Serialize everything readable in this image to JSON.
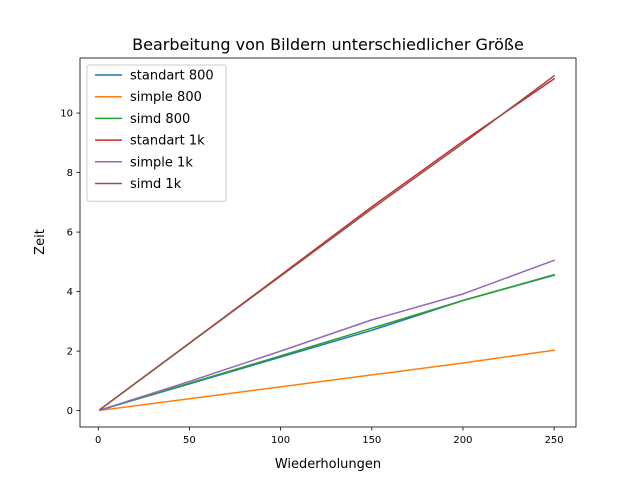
{
  "chart_data": {
    "type": "line",
    "title": "Bearbeitung von Bildern unterschiedlicher Größe",
    "xlabel": "Wiederholungen",
    "ylabel": "Zeit",
    "xlim": [
      -10,
      262
    ],
    "ylim": [
      -0.55,
      11.85
    ],
    "xticks": [
      0,
      50,
      100,
      150,
      200,
      250
    ],
    "yticks": [
      0,
      2,
      4,
      6,
      8,
      10
    ],
    "grid": false,
    "legend_position": "top-left",
    "x": [
      1,
      50,
      100,
      150,
      200,
      250
    ],
    "series": [
      {
        "name": "standart 800",
        "color": "#1f77b4",
        "values": [
          0.02,
          0.9,
          1.8,
          2.7,
          3.7,
          4.55
        ]
      },
      {
        "name": "simple 800",
        "color": "#ff7f0e",
        "values": [
          0.01,
          0.4,
          0.8,
          1.2,
          1.6,
          2.03
        ]
      },
      {
        "name": "simd 800",
        "color": "#2ca02c",
        "values": [
          0.02,
          0.92,
          1.84,
          2.77,
          3.7,
          4.57
        ]
      },
      {
        "name": "standart 1k",
        "color": "#d62728",
        "values": [
          0.04,
          2.27,
          4.55,
          6.85,
          9.05,
          11.15
        ]
      },
      {
        "name": "simple 1k",
        "color": "#9467bd",
        "values": [
          0.02,
          0.98,
          2.0,
          3.05,
          3.92,
          5.05
        ]
      },
      {
        "name": "simd 1k",
        "color": "#8c564b",
        "values": [
          0.04,
          2.26,
          4.52,
          6.78,
          8.98,
          11.25
        ]
      }
    ]
  }
}
